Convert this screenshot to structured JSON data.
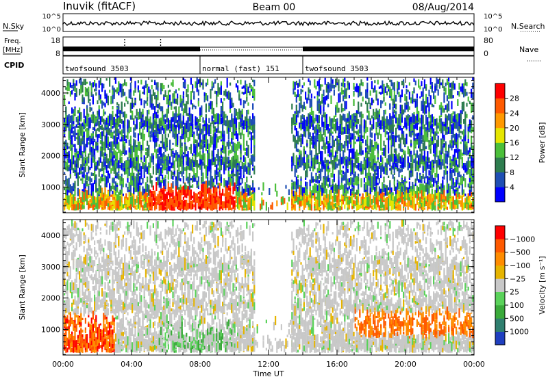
{
  "header": {
    "station": "Inuvik (fitACF)",
    "beam": "Beam 00",
    "date": "08/Aug/2014"
  },
  "noise_panel": {
    "left_label": "N.Sky",
    "right_label": "N.Search",
    "y_top": "10^5",
    "y_bottom": "10^0",
    "y_top_right": "10^5",
    "y_bottom_right": "10^0"
  },
  "freq_panel": {
    "left_label": "Freq.",
    "left_unit": "[MHz]",
    "left_ticks": [
      "18",
      "8"
    ],
    "right_label": "Nave",
    "right_ticks": [
      "80",
      "0"
    ]
  },
  "cpid_panel": {
    "label": "CPID",
    "segments": [
      {
        "label": "twofsound 3503",
        "start_h": 0,
        "end_h": 8
      },
      {
        "label": "normal (fast) 151",
        "start_h": 8,
        "end_h": 14
      },
      {
        "label": "twofsound 3503",
        "start_h": 14,
        "end_h": 24
      }
    ]
  },
  "chart_data": [
    {
      "type": "heatmap",
      "name": "power",
      "ylabel": "Slant Range [km]",
      "ylim": [
        180,
        4500
      ],
      "yticks": [
        1000,
        2000,
        3000,
        4000
      ],
      "xlim": [
        0,
        24
      ],
      "colorbar": {
        "label": "Power [dB]",
        "ticks": [
          "4",
          "8",
          "12",
          "16",
          "20",
          "24",
          "28"
        ],
        "colors": [
          "#0000ff",
          "#1f4fb4",
          "#2e7d4f",
          "#4bbf3a",
          "#e6e600",
          "#ff9900",
          "#ff5a00",
          "#ff0000"
        ]
      }
    },
    {
      "type": "heatmap",
      "name": "velocity",
      "ylabel": "Slant Range [km]",
      "ylim": [
        180,
        4500
      ],
      "yticks": [
        1000,
        2000,
        3000,
        4000
      ],
      "xlim": [
        0,
        24
      ],
      "xlabel": "Time UT",
      "xticks": [
        "00:00",
        "04:00",
        "08:00",
        "12:00",
        "16:00",
        "20:00",
        "00:00"
      ],
      "colorbar": {
        "label": "Velocity [m s⁻¹]",
        "ticks": [
          "1000",
          "500",
          "100",
          "25",
          "−25",
          "−100",
          "−500",
          "−1000"
        ],
        "colors": [
          "#1f3fc0",
          "#2f7f6f",
          "#3aaa3a",
          "#5ad25a",
          "#c8c8c8",
          "#e6b400",
          "#ff8c00",
          "#ff5a00",
          "#ff0000"
        ]
      }
    }
  ]
}
